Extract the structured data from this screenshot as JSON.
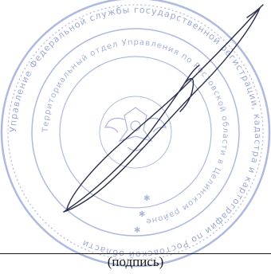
{
  "document": {
    "signature_caption": "(подпись)"
  },
  "seal": {
    "color": "#5a6fb8",
    "outer_ring_text": "Управление Федеральной службы государственной регистрации, кадастра и картографии по Ростовской области",
    "inner_ring_text": "Территориальный отдел Управления по Ростовской области в Целинском районе"
  },
  "signature": {
    "color": "#2b2f4a"
  }
}
